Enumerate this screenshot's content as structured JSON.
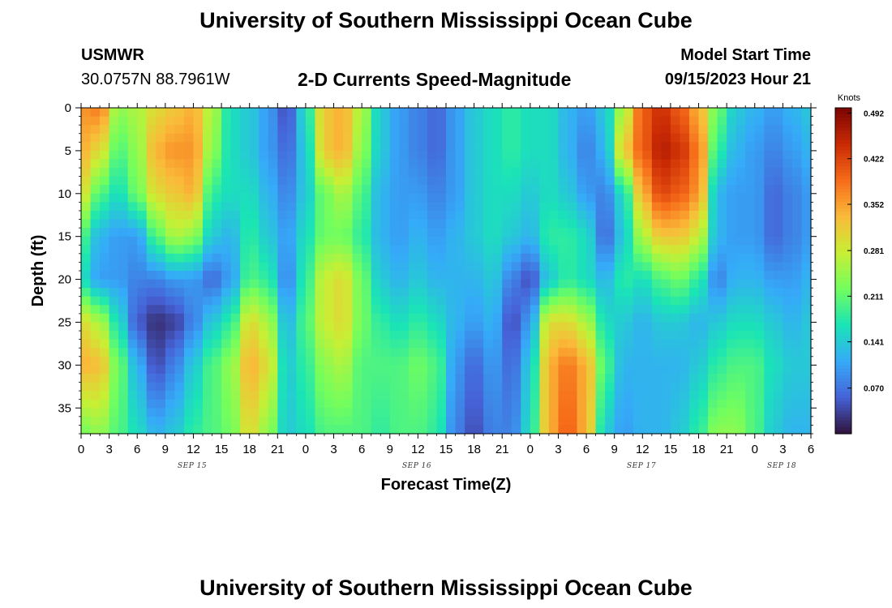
{
  "header": {
    "title": "University of Southern Mississippi Ocean Cube",
    "station": "USMWR",
    "coords": "30.0757N  88.7961W",
    "chart_subtitle": "2-D Currents Speed-Magnitude",
    "model_label": "Model Start Time",
    "model_time": "09/15/2023 Hour 21"
  },
  "footer": {
    "title": "University of Southern Mississippi Ocean Cube"
  },
  "date_labels": [
    "SEP 15",
    "SEP 16",
    "SEP 17",
    "SEP 18"
  ],
  "colors": [
    "#30123b",
    "#4662d7",
    "#35abf8",
    "#1ae4b6",
    "#72fe5e",
    "#c8ef34",
    "#faba39",
    "#f66b19",
    "#ca2a04",
    "#7a0403"
  ],
  "chart_data": {
    "type": "heatmap",
    "title": "2-D Currents Speed-Magnitude",
    "xlabel": "Forecast Time(Z)",
    "ylabel": "Depth (ft)",
    "x_range_hours": [
      0,
      78
    ],
    "x_ticks": [
      "0",
      "3",
      "6",
      "9",
      "12",
      "15",
      "18",
      "21",
      "0",
      "3",
      "6",
      "9",
      "12",
      "15",
      "18",
      "21",
      "0",
      "3",
      "6",
      "9",
      "12",
      "15",
      "18",
      "21",
      "0",
      "3",
      "6"
    ],
    "y_ticks": [
      0,
      5,
      10,
      15,
      20,
      25,
      30,
      35
    ],
    "y_range_ft": [
      0,
      38
    ],
    "colorbar": {
      "label": "Knots",
      "min": 0,
      "max": 0.5,
      "ticks": [
        "0.492",
        "0.422",
        "0.352",
        "0.281",
        "0.211",
        "0.141",
        "0.070"
      ]
    },
    "profiles": [
      {
        "t": 0,
        "v": [
          0.36,
          0.34,
          0.3,
          0.2,
          0.16,
          0.3,
          0.34,
          0.22
        ]
      },
      {
        "t": 2,
        "v": [
          0.38,
          0.3,
          0.2,
          0.12,
          0.1,
          0.26,
          0.33,
          0.24
        ]
      },
      {
        "t": 4,
        "v": [
          0.24,
          0.2,
          0.16,
          0.1,
          0.1,
          0.16,
          0.22,
          0.2
        ]
      },
      {
        "t": 6,
        "v": [
          0.26,
          0.24,
          0.22,
          0.1,
          0.08,
          0.05,
          0.12,
          0.16
        ]
      },
      {
        "t": 8,
        "v": [
          0.3,
          0.34,
          0.3,
          0.2,
          0.08,
          0.02,
          0.04,
          0.12
        ]
      },
      {
        "t": 10,
        "v": [
          0.32,
          0.36,
          0.32,
          0.26,
          0.1,
          0.03,
          0.08,
          0.14
        ]
      },
      {
        "t": 12,
        "v": [
          0.34,
          0.36,
          0.34,
          0.24,
          0.1,
          0.08,
          0.14,
          0.18
        ]
      },
      {
        "t": 14,
        "v": [
          0.26,
          0.24,
          0.18,
          0.14,
          0.06,
          0.14,
          0.2,
          0.2
        ]
      },
      {
        "t": 16,
        "v": [
          0.16,
          0.16,
          0.16,
          0.12,
          0.1,
          0.18,
          0.24,
          0.22
        ]
      },
      {
        "t": 18,
        "v": [
          0.14,
          0.14,
          0.16,
          0.18,
          0.2,
          0.3,
          0.34,
          0.3
        ]
      },
      {
        "t": 20,
        "v": [
          0.1,
          0.1,
          0.12,
          0.14,
          0.18,
          0.26,
          0.3,
          0.24
        ]
      },
      {
        "t": 22,
        "v": [
          0.04,
          0.06,
          0.08,
          0.1,
          0.08,
          0.12,
          0.14,
          0.14
        ]
      },
      {
        "t": 24,
        "v": [
          0.16,
          0.14,
          0.14,
          0.16,
          0.18,
          0.2,
          0.18,
          0.16
        ]
      },
      {
        "t": 26,
        "v": [
          0.32,
          0.32,
          0.22,
          0.22,
          0.28,
          0.28,
          0.24,
          0.2
        ]
      },
      {
        "t": 28,
        "v": [
          0.34,
          0.34,
          0.26,
          0.22,
          0.3,
          0.3,
          0.26,
          0.2
        ]
      },
      {
        "t": 30,
        "v": [
          0.26,
          0.24,
          0.2,
          0.18,
          0.22,
          0.22,
          0.2,
          0.2
        ]
      },
      {
        "t": 32,
        "v": [
          0.14,
          0.14,
          0.12,
          0.12,
          0.14,
          0.18,
          0.2,
          0.18
        ]
      },
      {
        "t": 34,
        "v": [
          0.1,
          0.1,
          0.1,
          0.1,
          0.12,
          0.16,
          0.2,
          0.2
        ]
      },
      {
        "t": 36,
        "v": [
          0.08,
          0.08,
          0.1,
          0.12,
          0.14,
          0.18,
          0.22,
          0.2
        ]
      },
      {
        "t": 38,
        "v": [
          0.06,
          0.06,
          0.08,
          0.1,
          0.12,
          0.16,
          0.2,
          0.18
        ]
      },
      {
        "t": 40,
        "v": [
          0.1,
          0.1,
          0.1,
          0.12,
          0.12,
          0.12,
          0.1,
          0.08
        ]
      },
      {
        "t": 42,
        "v": [
          0.14,
          0.14,
          0.14,
          0.14,
          0.12,
          0.1,
          0.06,
          0.04
        ]
      },
      {
        "t": 44,
        "v": [
          0.16,
          0.16,
          0.16,
          0.16,
          0.14,
          0.12,
          0.1,
          0.08
        ]
      },
      {
        "t": 46,
        "v": [
          0.18,
          0.18,
          0.16,
          0.14,
          0.08,
          0.04,
          0.06,
          0.08
        ]
      },
      {
        "t": 48,
        "v": [
          0.16,
          0.16,
          0.14,
          0.12,
          0.04,
          0.1,
          0.14,
          0.16
        ]
      },
      {
        "t": 50,
        "v": [
          0.16,
          0.16,
          0.16,
          0.18,
          0.14,
          0.3,
          0.34,
          0.34
        ]
      },
      {
        "t": 52,
        "v": [
          0.12,
          0.12,
          0.14,
          0.18,
          0.18,
          0.3,
          0.38,
          0.4
        ]
      },
      {
        "t": 54,
        "v": [
          0.1,
          0.08,
          0.1,
          0.16,
          0.16,
          0.26,
          0.34,
          0.34
        ]
      },
      {
        "t": 56,
        "v": [
          0.14,
          0.12,
          0.08,
          0.06,
          0.12,
          0.16,
          0.2,
          0.14
        ]
      },
      {
        "t": 58,
        "v": [
          0.26,
          0.32,
          0.16,
          0.14,
          0.18,
          0.14,
          0.12,
          0.1
        ]
      },
      {
        "t": 60,
        "v": [
          0.4,
          0.4,
          0.34,
          0.26,
          0.16,
          0.12,
          0.12,
          0.12
        ]
      },
      {
        "t": 62,
        "v": [
          0.44,
          0.46,
          0.42,
          0.32,
          0.2,
          0.14,
          0.12,
          0.12
        ]
      },
      {
        "t": 64,
        "v": [
          0.4,
          0.44,
          0.4,
          0.32,
          0.22,
          0.14,
          0.12,
          0.14
        ]
      },
      {
        "t": 66,
        "v": [
          0.34,
          0.38,
          0.36,
          0.28,
          0.18,
          0.12,
          0.14,
          0.18
        ]
      },
      {
        "t": 68,
        "v": [
          0.22,
          0.18,
          0.12,
          0.12,
          0.08,
          0.14,
          0.18,
          0.24
        ]
      },
      {
        "t": 70,
        "v": [
          0.14,
          0.12,
          0.1,
          0.1,
          0.12,
          0.16,
          0.2,
          0.24
        ]
      },
      {
        "t": 72,
        "v": [
          0.12,
          0.1,
          0.1,
          0.1,
          0.12,
          0.16,
          0.2,
          0.2
        ]
      },
      {
        "t": 74,
        "v": [
          0.1,
          0.08,
          0.06,
          0.06,
          0.1,
          0.14,
          0.16,
          0.14
        ]
      },
      {
        "t": 76,
        "v": [
          0.12,
          0.1,
          0.08,
          0.08,
          0.1,
          0.12,
          0.14,
          0.12
        ]
      },
      {
        "t": 78,
        "v": [
          0.14,
          0.12,
          0.1,
          0.1,
          0.12,
          0.14,
          0.14,
          0.12
        ]
      }
    ],
    "profile_depths_ft": [
      0,
      5,
      10,
      15,
      20,
      25,
      30,
      38
    ]
  }
}
